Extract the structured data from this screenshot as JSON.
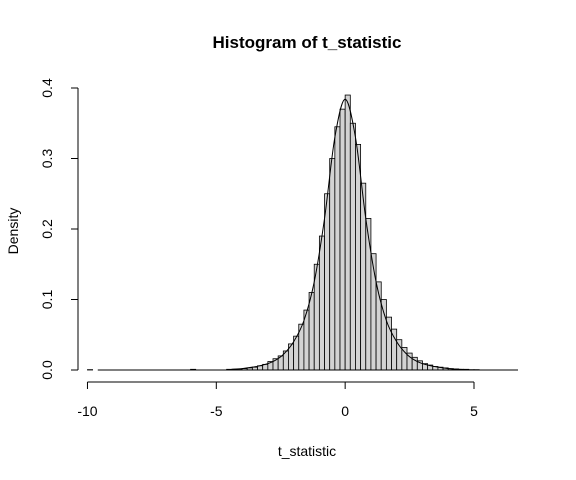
{
  "chart_data": {
    "type": "bar",
    "title": "Histogram of t_statistic",
    "xlabel": "t_statistic",
    "ylabel": "Density",
    "xlim": [
      -10.6,
      7.6
    ],
    "ylim": [
      0,
      0.4
    ],
    "x_ticks": [
      -10,
      -5,
      0,
      5
    ],
    "y_ticks": [
      0.0,
      0.1,
      0.2,
      0.3,
      0.4
    ],
    "x_tick_labels": [
      "-10",
      "-5",
      "0",
      "5"
    ],
    "y_tick_labels": [
      "0.0",
      "0.1",
      "0.2",
      "0.3",
      "0.4"
    ],
    "bin_width": 0.2,
    "bins": [
      {
        "x0": -10.0,
        "value": 0.0005
      },
      {
        "x0": -6.0,
        "value": 0.001
      },
      {
        "x0": -4.6,
        "value": 0.001
      },
      {
        "x0": -4.4,
        "value": 0.001
      },
      {
        "x0": -4.2,
        "value": 0.0015
      },
      {
        "x0": -4.0,
        "value": 0.002
      },
      {
        "x0": -3.8,
        "value": 0.003
      },
      {
        "x0": -3.6,
        "value": 0.004
      },
      {
        "x0": -3.4,
        "value": 0.006
      },
      {
        "x0": -3.2,
        "value": 0.008
      },
      {
        "x0": -3.0,
        "value": 0.012
      },
      {
        "x0": -2.8,
        "value": 0.016
      },
      {
        "x0": -2.6,
        "value": 0.02
      },
      {
        "x0": -2.4,
        "value": 0.027
      },
      {
        "x0": -2.2,
        "value": 0.037
      },
      {
        "x0": -2.0,
        "value": 0.048
      },
      {
        "x0": -1.8,
        "value": 0.065
      },
      {
        "x0": -1.6,
        "value": 0.085
      },
      {
        "x0": -1.4,
        "value": 0.11
      },
      {
        "x0": -1.2,
        "value": 0.15
      },
      {
        "x0": -1.0,
        "value": 0.19
      },
      {
        "x0": -0.8,
        "value": 0.25
      },
      {
        "x0": -0.6,
        "value": 0.3
      },
      {
        "x0": -0.4,
        "value": 0.345
      },
      {
        "x0": -0.2,
        "value": 0.37
      },
      {
        "x0": 0.0,
        "value": 0.39
      },
      {
        "x0": 0.2,
        "value": 0.35
      },
      {
        "x0": 0.4,
        "value": 0.32
      },
      {
        "x0": 0.6,
        "value": 0.265
      },
      {
        "x0": 0.8,
        "value": 0.215
      },
      {
        "x0": 1.0,
        "value": 0.165
      },
      {
        "x0": 1.2,
        "value": 0.125
      },
      {
        "x0": 1.4,
        "value": 0.1
      },
      {
        "x0": 1.6,
        "value": 0.075
      },
      {
        "x0": 1.8,
        "value": 0.058
      },
      {
        "x0": 2.0,
        "value": 0.043
      },
      {
        "x0": 2.2,
        "value": 0.032
      },
      {
        "x0": 2.4,
        "value": 0.024
      },
      {
        "x0": 2.6,
        "value": 0.018
      },
      {
        "x0": 2.8,
        "value": 0.013
      },
      {
        "x0": 3.0,
        "value": 0.009
      },
      {
        "x0": 3.2,
        "value": 0.007
      },
      {
        "x0": 3.4,
        "value": 0.005
      },
      {
        "x0": 3.6,
        "value": 0.004
      },
      {
        "x0": 3.8,
        "value": 0.003
      },
      {
        "x0": 4.0,
        "value": 0.002
      },
      {
        "x0": 4.2,
        "value": 0.0015
      },
      {
        "x0": 4.4,
        "value": 0.001
      },
      {
        "x0": 4.6,
        "value": 0.001
      },
      {
        "x0": 4.8,
        "value": 0.0005
      },
      {
        "x0": 5.0,
        "value": 0.0005
      }
    ],
    "curve": {
      "x": [
        -4.4,
        -4.0,
        -3.6,
        -3.2,
        -2.8,
        -2.4,
        -2.0,
        -1.6,
        -1.2,
        -0.8,
        -0.4,
        0.0,
        0.4,
        0.8,
        1.2,
        1.6,
        2.0,
        2.4,
        2.8,
        3.2,
        3.6,
        4.0,
        4.4,
        4.8
      ],
      "y": [
        0.001,
        0.002,
        0.004,
        0.007,
        0.012,
        0.022,
        0.04,
        0.07,
        0.125,
        0.215,
        0.33,
        0.384,
        0.33,
        0.215,
        0.125,
        0.07,
        0.04,
        0.022,
        0.012,
        0.007,
        0.004,
        0.002,
        0.001,
        0.0005
      ]
    },
    "grid": false,
    "legend": "none"
  }
}
